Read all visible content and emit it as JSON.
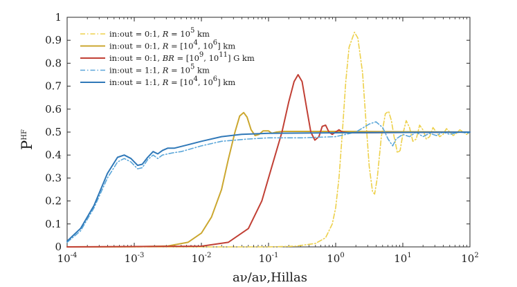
{
  "chart_data": {
    "type": "line",
    "title": "",
    "xscale": "log",
    "xlim": [
      0.0001,
      100
    ],
    "ylim": [
      0,
      1
    ],
    "ylabel": "P",
    "ylabel_sup": "HF",
    "xlabel": "aν/aν,Hillas",
    "yticks": [
      "0",
      "0.1",
      "0.2",
      "0.3",
      "0.4",
      "0.5",
      "0.6",
      "0.7",
      "0.8",
      "0.9",
      "1"
    ],
    "xticks": [
      {
        "base": "10",
        "exp": "-4"
      },
      {
        "base": "10",
        "exp": "-3"
      },
      {
        "base": "10",
        "exp": "-2"
      },
      {
        "base": "10",
        "exp": "-1"
      },
      {
        "base": "10",
        "exp": "0"
      },
      {
        "base": "10",
        "exp": "1"
      },
      {
        "base": "10",
        "exp": "2"
      }
    ],
    "grid": false,
    "legend_position": "top-left",
    "series": [
      {
        "name": "in:out = 0:1, R = 10^5 km",
        "label_parts": [
          "in:out = 0:1, ",
          "R",
          " = 10",
          "5",
          " km"
        ],
        "color": "#edd04a",
        "style": "dash-dot",
        "points": [
          [
            -4.0,
            0.0
          ],
          [
            -1.0,
            0.0
          ],
          [
            -0.6,
            0.003
          ],
          [
            -0.3,
            0.015
          ],
          [
            -0.15,
            0.04
          ],
          [
            -0.05,
            0.1
          ],
          [
            0.0,
            0.17
          ],
          [
            0.05,
            0.3
          ],
          [
            0.1,
            0.5
          ],
          [
            0.15,
            0.72
          ],
          [
            0.2,
            0.87
          ],
          [
            0.28,
            0.935
          ],
          [
            0.33,
            0.91
          ],
          [
            0.4,
            0.76
          ],
          [
            0.45,
            0.55
          ],
          [
            0.5,
            0.35
          ],
          [
            0.55,
            0.24
          ],
          [
            0.58,
            0.23
          ],
          [
            0.62,
            0.3
          ],
          [
            0.68,
            0.48
          ],
          [
            0.74,
            0.58
          ],
          [
            0.79,
            0.59
          ],
          [
            0.83,
            0.55
          ],
          [
            0.87,
            0.48
          ],
          [
            0.92,
            0.41
          ],
          [
            0.96,
            0.42
          ],
          [
            1.0,
            0.49
          ],
          [
            1.05,
            0.55
          ],
          [
            1.1,
            0.52
          ],
          [
            1.15,
            0.46
          ],
          [
            1.2,
            0.47
          ],
          [
            1.25,
            0.53
          ],
          [
            1.3,
            0.51
          ],
          [
            1.35,
            0.47
          ],
          [
            1.4,
            0.48
          ],
          [
            1.45,
            0.52
          ],
          [
            1.5,
            0.5
          ],
          [
            1.55,
            0.48
          ],
          [
            1.6,
            0.49
          ],
          [
            1.65,
            0.515
          ],
          [
            1.7,
            0.5
          ],
          [
            1.75,
            0.485
          ],
          [
            1.8,
            0.495
          ],
          [
            1.85,
            0.51
          ],
          [
            1.9,
            0.5
          ],
          [
            1.95,
            0.49
          ],
          [
            2.0,
            0.5
          ]
        ]
      },
      {
        "name": "in:out = 0:1, R = [10^4, 10^6] km",
        "label_parts": [
          "in:out = 0:1, ",
          "R",
          " = [10",
          "4",
          ", 10",
          "6",
          "] km"
        ],
        "color": "#cba72f",
        "style": "solid",
        "points": [
          [
            -4.0,
            0.0
          ],
          [
            -3.0,
            0.0005
          ],
          [
            -2.5,
            0.004
          ],
          [
            -2.2,
            0.02
          ],
          [
            -2.0,
            0.06
          ],
          [
            -1.85,
            0.13
          ],
          [
            -1.7,
            0.25
          ],
          [
            -1.6,
            0.38
          ],
          [
            -1.5,
            0.5
          ],
          [
            -1.43,
            0.57
          ],
          [
            -1.37,
            0.585
          ],
          [
            -1.32,
            0.565
          ],
          [
            -1.26,
            0.51
          ],
          [
            -1.2,
            0.485
          ],
          [
            -1.14,
            0.49
          ],
          [
            -1.08,
            0.505
          ],
          [
            -1.0,
            0.505
          ],
          [
            -0.95,
            0.495
          ],
          [
            -0.88,
            0.5
          ],
          [
            -0.8,
            0.503
          ],
          [
            0.0,
            0.503
          ],
          [
            2.0,
            0.5
          ]
        ]
      },
      {
        "name": "in:out = 0:1, BR = [10^9, 10^11] G km",
        "label_parts": [
          "in:out = 0:1, ",
          "BR",
          " = [10",
          "9",
          ", 10",
          "11",
          "] G km"
        ],
        "color": "#c13f34",
        "style": "solid",
        "points": [
          [
            -4.0,
            0.0
          ],
          [
            -2.0,
            0.003
          ],
          [
            -1.6,
            0.02
          ],
          [
            -1.3,
            0.08
          ],
          [
            -1.1,
            0.2
          ],
          [
            -0.95,
            0.35
          ],
          [
            -0.8,
            0.5
          ],
          [
            -0.7,
            0.63
          ],
          [
            -0.62,
            0.72
          ],
          [
            -0.56,
            0.75
          ],
          [
            -0.5,
            0.72
          ],
          [
            -0.43,
            0.6
          ],
          [
            -0.37,
            0.5
          ],
          [
            -0.31,
            0.465
          ],
          [
            -0.25,
            0.48
          ],
          [
            -0.2,
            0.525
          ],
          [
            -0.15,
            0.53
          ],
          [
            -0.1,
            0.5
          ],
          [
            -0.05,
            0.49
          ],
          [
            0.0,
            0.5
          ],
          [
            0.05,
            0.51
          ],
          [
            0.1,
            0.5
          ],
          [
            0.2,
            0.497
          ],
          [
            2.0,
            0.5
          ]
        ]
      },
      {
        "name": "in:out = 1:1, R = 10^5 km",
        "label_parts": [
          "in:out = 1:1, ",
          "R",
          " = 10",
          "5",
          " km"
        ],
        "color": "#5aa6d9",
        "style": "dash-dot",
        "points": [
          [
            -4.0,
            0.02
          ],
          [
            -3.8,
            0.07
          ],
          [
            -3.6,
            0.17
          ],
          [
            -3.4,
            0.3
          ],
          [
            -3.25,
            0.37
          ],
          [
            -3.15,
            0.385
          ],
          [
            -3.05,
            0.37
          ],
          [
            -2.95,
            0.34
          ],
          [
            -2.88,
            0.345
          ],
          [
            -2.8,
            0.38
          ],
          [
            -2.72,
            0.4
          ],
          [
            -2.65,
            0.385
          ],
          [
            -2.58,
            0.4
          ],
          [
            -2.5,
            0.405
          ],
          [
            -2.42,
            0.41
          ],
          [
            -2.3,
            0.415
          ],
          [
            -2.0,
            0.44
          ],
          [
            -1.7,
            0.46
          ],
          [
            -1.3,
            0.47
          ],
          [
            -1.0,
            0.475
          ],
          [
            -0.5,
            0.475
          ],
          [
            0.0,
            0.48
          ],
          [
            0.3,
            0.5
          ],
          [
            0.5,
            0.535
          ],
          [
            0.6,
            0.545
          ],
          [
            0.7,
            0.52
          ],
          [
            0.78,
            0.47
          ],
          [
            0.85,
            0.44
          ],
          [
            0.9,
            0.47
          ],
          [
            1.0,
            0.49
          ],
          [
            1.1,
            0.48
          ],
          [
            1.2,
            0.5
          ],
          [
            1.3,
            0.48
          ],
          [
            1.4,
            0.495
          ],
          [
            1.5,
            0.485
          ],
          [
            1.6,
            0.5
          ],
          [
            1.7,
            0.49
          ],
          [
            1.85,
            0.5
          ],
          [
            2.0,
            0.495
          ]
        ]
      },
      {
        "name": "in:out = 1:1, R = [10^4, 10^6] km",
        "label_parts": [
          "in:out = 1:1, ",
          "R",
          " = [10",
          "4",
          ", 10",
          "6",
          "] km"
        ],
        "color": "#2f78b8",
        "style": "solid",
        "points": [
          [
            -4.0,
            0.025
          ],
          [
            -3.8,
            0.08
          ],
          [
            -3.6,
            0.18
          ],
          [
            -3.4,
            0.32
          ],
          [
            -3.25,
            0.39
          ],
          [
            -3.15,
            0.4
          ],
          [
            -3.05,
            0.385
          ],
          [
            -2.95,
            0.355
          ],
          [
            -2.88,
            0.36
          ],
          [
            -2.8,
            0.39
          ],
          [
            -2.72,
            0.415
          ],
          [
            -2.65,
            0.405
          ],
          [
            -2.58,
            0.42
          ],
          [
            -2.5,
            0.43
          ],
          [
            -2.4,
            0.43
          ],
          [
            -2.2,
            0.445
          ],
          [
            -2.0,
            0.46
          ],
          [
            -1.7,
            0.48
          ],
          [
            -1.4,
            0.49
          ],
          [
            -1.0,
            0.495
          ],
          [
            0.0,
            0.497
          ],
          [
            2.0,
            0.5
          ]
        ]
      }
    ]
  }
}
